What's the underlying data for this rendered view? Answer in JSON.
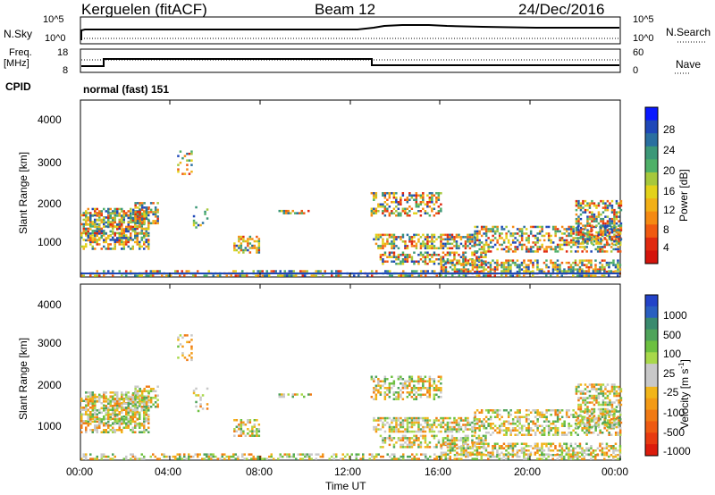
{
  "header": {
    "station": "Kerguelen (fitACF)",
    "beam": "Beam 12",
    "date": "24/Dec/2016"
  },
  "top_panels": {
    "nsky_label": "N.Sky",
    "nsky_ticks": [
      "10^5",
      "10^0"
    ],
    "nsearch_label": "N.Search",
    "nsearch_ticks": [
      "10^5",
      "10^0"
    ],
    "freq_label": "Freq.",
    "freq_units": "[MHz]",
    "freq_ticks": [
      "18",
      "8"
    ],
    "nave_label": "Nave",
    "nave_ticks": [
      "60",
      "0"
    ],
    "cpid_label": "CPID",
    "cpid_value": "normal (fast) 151"
  },
  "chart_data": [
    {
      "type": "heatmap",
      "name": "power",
      "ylabel": "Slant Range [km]",
      "yticks": [
        "4000",
        "3000",
        "2000",
        "1000"
      ],
      "ylim": [
        180,
        4600
      ],
      "xlabel": "Time UT",
      "xticks": [
        "00:00",
        "04:00",
        "08:00",
        "12:00",
        "16:00",
        "20:00",
        "00:00"
      ],
      "xlim_hours": [
        0,
        24
      ],
      "colorbar": {
        "label": "Power [dB]",
        "ticks": [
          "28",
          "24",
          "20",
          "16",
          "12",
          "8",
          "4"
        ],
        "colors": [
          "#0a19ff",
          "#1f48b8",
          "#2a6fa0",
          "#3c9878",
          "#4fb068",
          "#a6c83c",
          "#e3d21a",
          "#f2b017",
          "#f58a13",
          "#f05a11",
          "#e02a10",
          "#d4140c"
        ]
      }
    },
    {
      "type": "heatmap",
      "name": "velocity",
      "ylabel": "Slant Range [km]",
      "yticks": [
        "4000",
        "3000",
        "2000",
        "1000"
      ],
      "ylim": [
        180,
        4600
      ],
      "xlabel": "Time UT",
      "xticks": [
        "00:00",
        "04:00",
        "08:00",
        "12:00",
        "16:00",
        "20:00",
        "00:00"
      ],
      "xlim_hours": [
        0,
        24
      ],
      "colorbar": {
        "label": "Velocity [m s",
        "label_superscript": "-1",
        "label_close": "]",
        "ticks": [
          "1000",
          "500",
          "100",
          "25",
          "-25",
          "-100",
          "-500",
          "-1000"
        ],
        "colors": [
          "#2343c8",
          "#2a5fc0",
          "#3a8a6e",
          "#4fa35a",
          "#6dc040",
          "#a8d84a",
          "#c8c8c8",
          "#c8c8c8",
          "#f1b51a",
          "#f39a16",
          "#f07a14",
          "#ee5a12",
          "#e83a10",
          "#dc1c0c"
        ]
      }
    }
  ]
}
